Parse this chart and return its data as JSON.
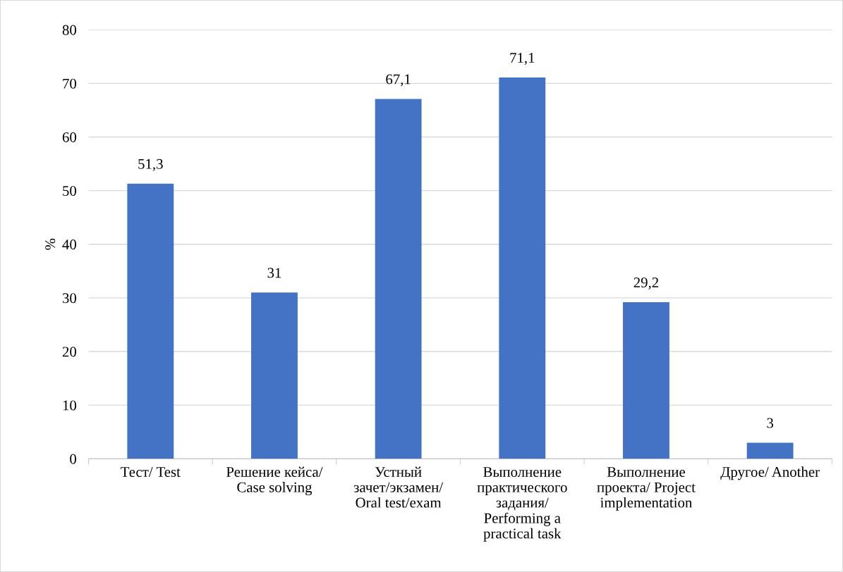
{
  "chart_data": {
    "type": "bar",
    "ylabel": "%",
    "categories": [
      "Тест/ Test",
      "Решение кейса/\nCase solving",
      "Устный\nзачет/экзамен/\nOral test/exam",
      "Выполнение\nпрактического\nзадания/\nPerforming a\npractical task",
      "Выполнение\nпроекта/ Project\nimplementation",
      "Другое/ Another"
    ],
    "values": [
      51.3,
      31,
      67.1,
      71.1,
      29.2,
      3
    ],
    "color": "#4472c4",
    "ylim": [
      0,
      80
    ],
    "yticks": [
      0,
      10,
      20,
      30,
      40,
      50,
      60,
      70,
      80
    ],
    "value_labels": [
      "51,3",
      "31",
      "67,1",
      "71,1",
      "29,2",
      "3"
    ],
    "grid": "y"
  }
}
